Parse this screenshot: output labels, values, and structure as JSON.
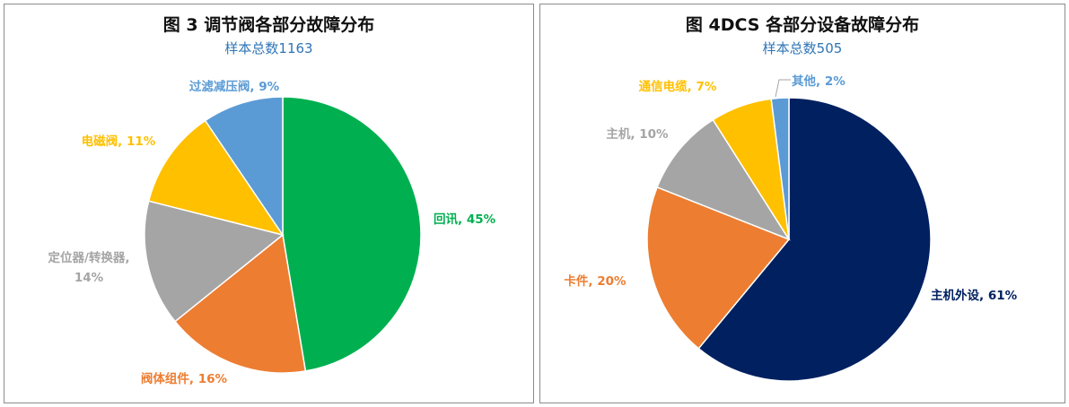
{
  "chart_data": [
    {
      "type": "pie",
      "title": "图 3 调节阀各部分故障分布",
      "subtitle": "样本总数1163",
      "subtitle_color": "#2E75B6",
      "slices": [
        {
          "label": "回讯",
          "percent_label": "45%",
          "value": 0.45,
          "color": "#00B050"
        },
        {
          "label": "阀体组件",
          "percent_label": "16%",
          "value": 0.16,
          "color": "#ED7D31"
        },
        {
          "label": "定位器/转换器,",
          "percent_label": "14%",
          "value": 0.14,
          "color": "#A5A5A5"
        },
        {
          "label": "电磁阀",
          "percent_label": "11%",
          "value": 0.11,
          "color": "#FFC000"
        },
        {
          "label": "过滤减压阀",
          "percent_label": "9%",
          "value": 0.09,
          "color": "#5B9BD5"
        }
      ]
    },
    {
      "type": "pie",
      "title": "图 4DCS 各部分设备故障分布",
      "subtitle": "样本总数505",
      "subtitle_color": "#2E75B6",
      "slices": [
        {
          "label": "主机外设",
          "percent_label": "61%",
          "value": 0.61,
          "color": "#002060"
        },
        {
          "label": "卡件",
          "percent_label": "20%",
          "value": 0.2,
          "color": "#ED7D31"
        },
        {
          "label": "主机",
          "percent_label": "10%",
          "value": 0.1,
          "color": "#A5A5A5"
        },
        {
          "label": "通信电缆",
          "percent_label": "7%",
          "value": 0.07,
          "color": "#FFC000"
        },
        {
          "label": "其他",
          "percent_label": "2%",
          "value": 0.02,
          "color": "#5B9BD5"
        }
      ]
    }
  ]
}
